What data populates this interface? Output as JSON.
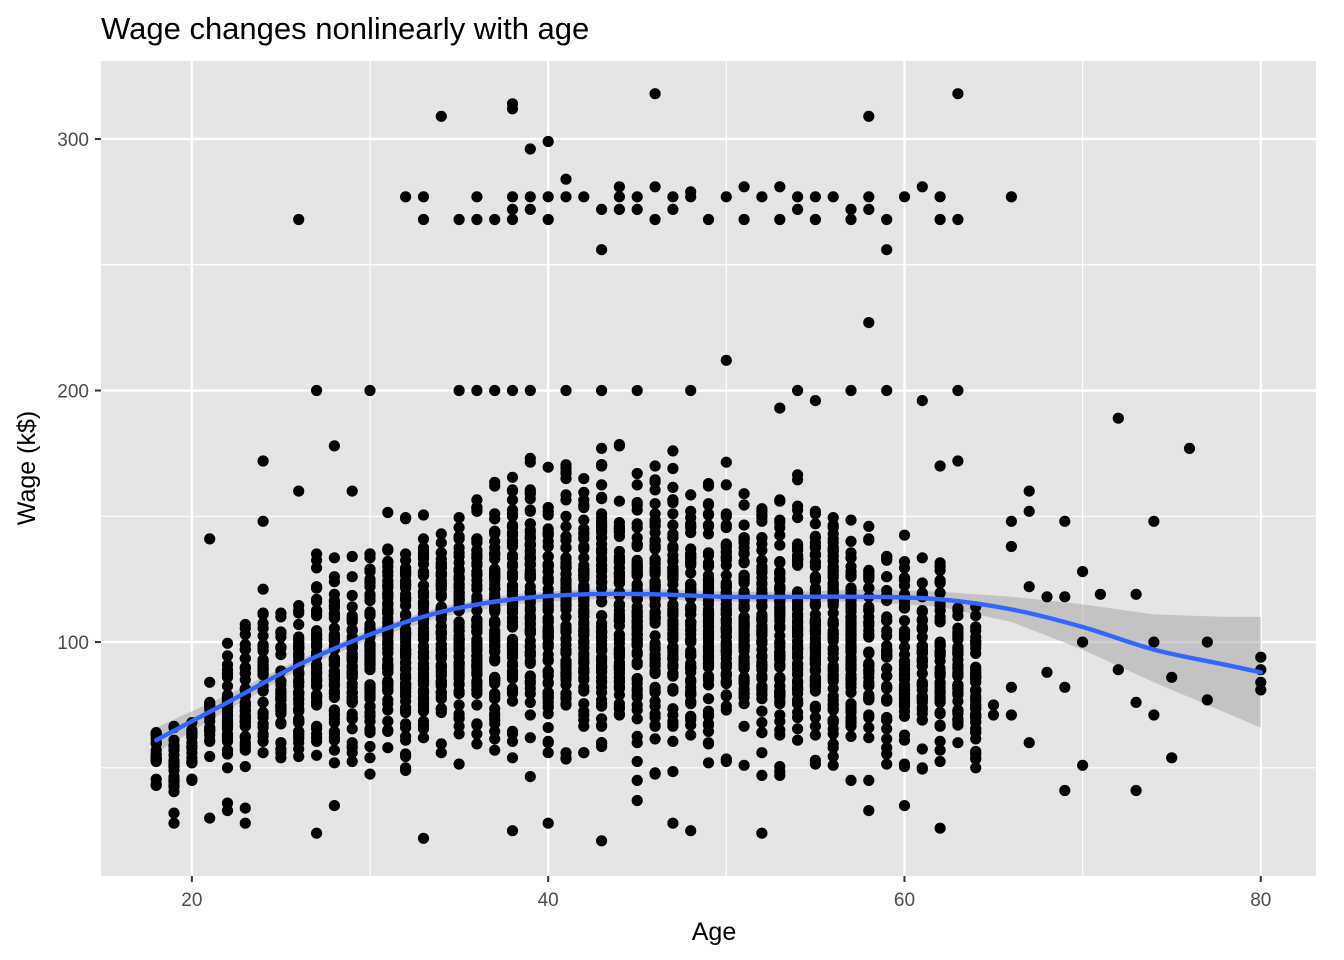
{
  "chart_data": {
    "type": "scatter",
    "title": "Wage changes nonlinearly with age",
    "xlabel": "Age",
    "ylabel": "Wage (k$)",
    "xlim": [
      14.9,
      83.1
    ],
    "ylim": [
      7.0,
      331.0
    ],
    "x_ticks": [
      20,
      40,
      60,
      80
    ],
    "y_ticks": [
      100,
      200,
      300
    ],
    "grid": true,
    "legend": "none",
    "colors": {
      "panel": "#e5e5e5",
      "grid": "#ffffff",
      "points": "#000000",
      "smooth_line": "#3366ff",
      "confidence_band": "#999999",
      "tick_text": "#4d4d4d"
    },
    "outlier_points": [
      [
        26,
        268
      ],
      [
        33,
        268
      ],
      [
        35,
        268
      ],
      [
        36,
        268
      ],
      [
        37,
        268
      ],
      [
        38,
        268
      ],
      [
        40,
        268
      ],
      [
        46,
        268
      ],
      [
        49,
        268
      ],
      [
        51,
        268
      ],
      [
        53,
        268
      ],
      [
        55,
        268
      ],
      [
        57,
        268
      ],
      [
        59,
        268
      ],
      [
        62,
        268
      ],
      [
        63,
        268
      ],
      [
        32,
        277
      ],
      [
        33,
        277
      ],
      [
        36,
        277
      ],
      [
        38,
        277
      ],
      [
        39,
        277
      ],
      [
        40,
        277
      ],
      [
        41,
        277
      ],
      [
        42,
        277
      ],
      [
        44,
        277
      ],
      [
        45,
        277
      ],
      [
        47,
        277
      ],
      [
        48,
        277
      ],
      [
        50,
        277
      ],
      [
        52,
        277
      ],
      [
        54,
        277
      ],
      [
        55,
        277
      ],
      [
        56,
        277
      ],
      [
        58,
        277
      ],
      [
        60,
        277
      ],
      [
        62,
        277
      ],
      [
        66,
        277
      ],
      [
        38,
        272
      ],
      [
        39,
        272
      ],
      [
        43,
        272
      ],
      [
        44,
        272
      ],
      [
        45,
        272
      ],
      [
        47,
        272
      ],
      [
        54,
        272
      ],
      [
        57,
        272
      ],
      [
        58,
        272
      ],
      [
        41,
        284
      ],
      [
        44,
        281
      ],
      [
        46,
        281
      ],
      [
        51,
        281
      ],
      [
        53,
        281
      ],
      [
        61,
        281
      ],
      [
        48,
        279
      ],
      [
        43,
        256
      ],
      [
        59,
        256
      ],
      [
        58,
        227
      ],
      [
        50,
        212
      ],
      [
        39,
        296
      ],
      [
        40,
        299
      ],
      [
        34,
        309
      ],
      [
        58,
        309
      ],
      [
        38,
        312
      ],
      [
        38,
        314
      ],
      [
        46,
        318
      ],
      [
        63,
        318
      ]
    ],
    "extreme_points": [
      [
        72,
        189
      ],
      [
        76,
        177
      ],
      [
        74,
        148
      ],
      [
        69,
        148
      ],
      [
        67,
        160
      ],
      [
        67,
        152
      ],
      [
        73,
        119
      ],
      [
        70,
        128
      ],
      [
        71,
        119
      ],
      [
        74,
        100
      ],
      [
        77,
        100
      ],
      [
        70,
        100
      ],
      [
        72,
        89
      ],
      [
        75,
        86
      ],
      [
        73,
        76
      ],
      [
        74,
        71
      ],
      [
        77,
        77
      ],
      [
        69,
        41
      ],
      [
        70,
        51
      ],
      [
        73,
        41
      ],
      [
        75,
        54
      ],
      [
        80,
        94
      ],
      [
        80,
        89
      ],
      [
        80,
        84
      ],
      [
        80,
        81
      ],
      [
        66,
        148
      ],
      [
        66,
        138
      ],
      [
        67,
        122
      ],
      [
        68,
        118
      ],
      [
        69,
        118
      ],
      [
        65,
        71
      ],
      [
        66,
        71
      ],
      [
        67,
        60
      ],
      [
        65,
        75
      ],
      [
        64,
        50
      ],
      [
        66,
        82
      ],
      [
        68,
        88
      ],
      [
        69,
        82
      ],
      [
        26,
        160
      ],
      [
        24,
        172
      ],
      [
        21,
        141
      ],
      [
        24,
        148
      ],
      [
        27,
        200
      ],
      [
        30,
        200
      ],
      [
        29,
        160
      ],
      [
        28,
        178
      ],
      [
        19,
        28
      ],
      [
        19,
        32
      ],
      [
        21,
        30
      ],
      [
        22,
        33
      ],
      [
        22,
        36
      ],
      [
        23,
        28
      ],
      [
        23,
        34
      ],
      [
        27,
        24
      ],
      [
        28,
        35
      ],
      [
        33,
        22
      ],
      [
        38,
        25
      ],
      [
        40,
        28
      ],
      [
        43,
        21
      ],
      [
        45,
        37
      ],
      [
        47,
        28
      ],
      [
        48,
        25
      ],
      [
        52,
        24
      ],
      [
        58,
        33
      ],
      [
        60,
        35
      ],
      [
        62,
        26
      ],
      [
        37,
        200
      ],
      [
        38,
        200
      ],
      [
        35,
        200
      ],
      [
        36,
        200
      ],
      [
        39,
        200
      ],
      [
        41,
        200
      ],
      [
        43,
        200
      ],
      [
        45,
        200
      ],
      [
        48,
        200
      ],
      [
        54,
        200
      ],
      [
        57,
        200
      ],
      [
        59,
        200
      ],
      [
        63,
        200
      ],
      [
        63,
        172
      ],
      [
        62,
        170
      ],
      [
        61,
        196
      ],
      [
        55,
        196
      ],
      [
        53,
        193
      ]
    ],
    "smooth_line": [
      [
        18,
        61
      ],
      [
        22,
        76
      ],
      [
        26,
        91
      ],
      [
        30,
        103
      ],
      [
        34,
        112
      ],
      [
        38,
        117
      ],
      [
        42,
        119
      ],
      [
        46,
        119
      ],
      [
        50,
        118
      ],
      [
        54,
        118
      ],
      [
        58,
        118
      ],
      [
        62,
        117
      ],
      [
        66,
        113
      ],
      [
        70,
        106
      ],
      [
        74,
        97
      ],
      [
        78,
        91
      ],
      [
        80,
        88
      ]
    ],
    "confidence_band": [
      [
        18,
        56,
        66
      ],
      [
        22,
        73,
        79
      ],
      [
        26,
        89,
        93
      ],
      [
        30,
        101,
        105
      ],
      [
        34,
        110,
        114
      ],
      [
        38,
        115,
        119
      ],
      [
        42,
        117,
        121
      ],
      [
        46,
        117,
        121
      ],
      [
        50,
        116,
        120
      ],
      [
        54,
        116,
        120
      ],
      [
        58,
        116,
        121
      ],
      [
        62,
        114,
        120
      ],
      [
        66,
        108,
        118
      ],
      [
        70,
        97,
        115
      ],
      [
        74,
        84,
        111
      ],
      [
        78,
        72,
        110
      ],
      [
        80,
        66,
        110
      ]
    ],
    "approx_observations": 3000,
    "bulk_wage_range_by_age": [
      [
        18,
        43,
        77
      ],
      [
        19,
        40,
        77
      ],
      [
        20,
        45,
        80
      ],
      [
        21,
        50,
        95
      ],
      [
        22,
        48,
        110
      ],
      [
        23,
        45,
        125
      ],
      [
        24,
        45,
        130
      ],
      [
        25,
        45,
        130
      ],
      [
        26,
        45,
        135
      ],
      [
        27,
        45,
        145
      ],
      [
        28,
        45,
        145
      ],
      [
        29,
        45,
        145
      ],
      [
        30,
        45,
        155
      ],
      [
        31,
        45,
        165
      ],
      [
        32,
        45,
        165
      ],
      [
        33,
        45,
        168
      ],
      [
        34,
        45,
        170
      ],
      [
        35,
        45,
        175
      ],
      [
        36,
        45,
        180
      ],
      [
        37,
        45,
        180
      ],
      [
        38,
        45,
        185
      ],
      [
        39,
        45,
        190
      ],
      [
        40,
        45,
        190
      ],
      [
        41,
        45,
        190
      ],
      [
        42,
        45,
        190
      ],
      [
        43,
        45,
        190
      ],
      [
        44,
        45,
        190
      ],
      [
        45,
        45,
        190
      ],
      [
        46,
        45,
        190
      ],
      [
        47,
        45,
        185
      ],
      [
        48,
        45,
        185
      ],
      [
        49,
        45,
        185
      ],
      [
        50,
        45,
        185
      ],
      [
        51,
        45,
        180
      ],
      [
        52,
        45,
        180
      ],
      [
        53,
        45,
        175
      ],
      [
        54,
        45,
        175
      ],
      [
        55,
        45,
        175
      ],
      [
        56,
        45,
        170
      ],
      [
        57,
        45,
        165
      ],
      [
        58,
        45,
        165
      ],
      [
        59,
        45,
        165
      ],
      [
        60,
        45,
        160
      ],
      [
        61,
        45,
        150
      ],
      [
        62,
        45,
        145
      ],
      [
        63,
        45,
        135
      ],
      [
        64,
        45,
        130
      ]
    ]
  }
}
